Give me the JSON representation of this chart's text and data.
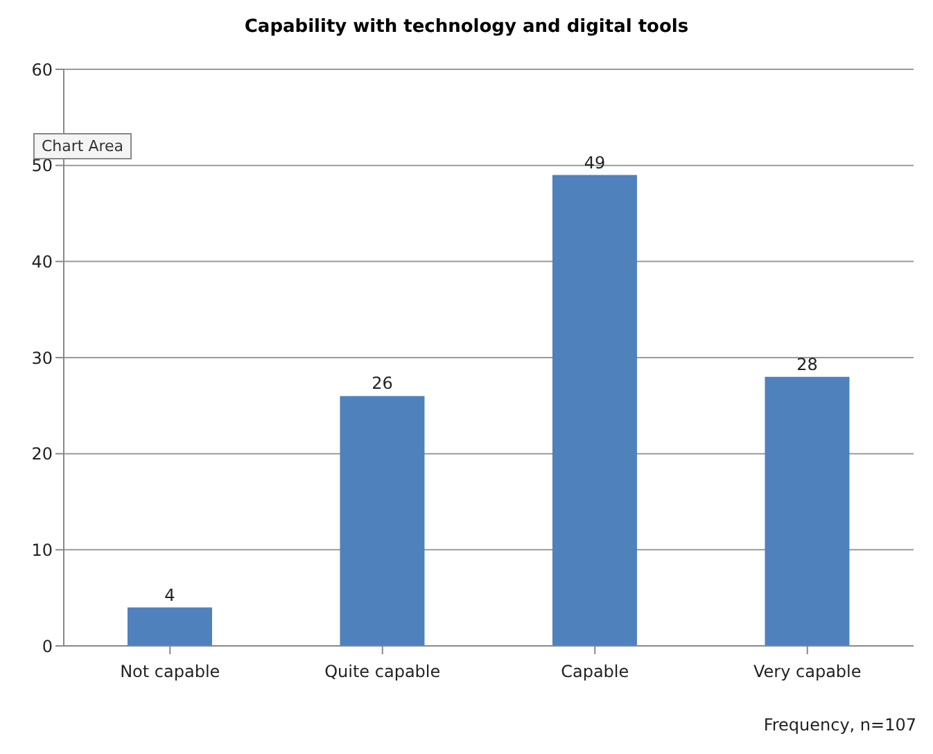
{
  "chart_data": {
    "type": "bar",
    "title": "Capability with technology and digital tools",
    "categories": [
      "Not capable",
      "Quite capable",
      "Capable",
      "Very capable"
    ],
    "values": [
      4,
      26,
      49,
      28
    ],
    "color": "#4f81bd",
    "ylim": [
      0,
      60
    ],
    "yticks": [
      0,
      10,
      20,
      30,
      40,
      50,
      60
    ],
    "grid": "y",
    "data_labels": true,
    "annotations": [
      "Chart Area",
      "Frequency, n=107"
    ]
  }
}
